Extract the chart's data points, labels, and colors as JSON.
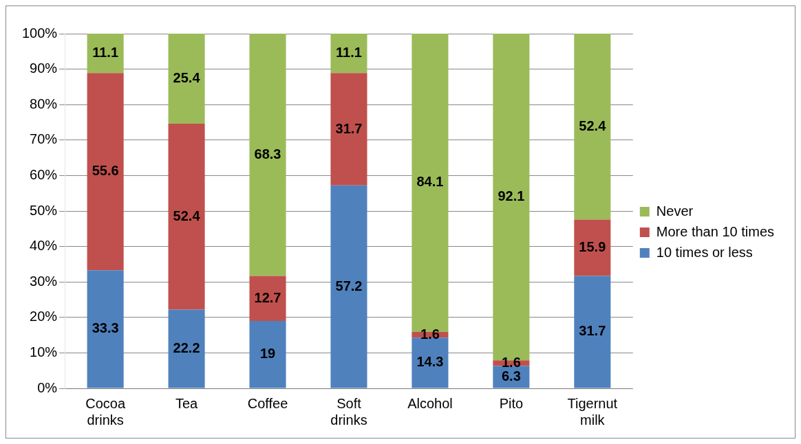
{
  "chart_data": {
    "type": "bar",
    "stacked": true,
    "categories": [
      "Cocoa drinks",
      "Tea",
      "Coffee",
      "Soft drinks",
      "Alcohol",
      "Pito",
      "Tigernut milk"
    ],
    "series": [
      {
        "name": "10 times or less",
        "color": "#4f81bd",
        "values": [
          33.3,
          22.2,
          19,
          57.2,
          14.3,
          6.3,
          31.7
        ]
      },
      {
        "name": "More than 10 times",
        "color": "#c0504d",
        "values": [
          55.6,
          52.4,
          12.7,
          31.7,
          1.6,
          1.6,
          15.9
        ]
      },
      {
        "name": "Never",
        "color": "#9bbb59",
        "values": [
          11.1,
          25.4,
          68.3,
          11.1,
          84.1,
          92.1,
          52.4
        ]
      }
    ],
    "ylim": [
      0,
      100
    ],
    "yticks": [
      {
        "value": 0,
        "label": "0%"
      },
      {
        "value": 10,
        "label": "10%"
      },
      {
        "value": 20,
        "label": "20%"
      },
      {
        "value": 30,
        "label": "30%"
      },
      {
        "value": 40,
        "label": "40%"
      },
      {
        "value": 50,
        "label": "50%"
      },
      {
        "value": 60,
        "label": "60%"
      },
      {
        "value": 70,
        "label": "70%"
      },
      {
        "value": 80,
        "label": "80%"
      },
      {
        "value": 90,
        "label": "90%"
      },
      {
        "value": 100,
        "label": "100%"
      }
    ],
    "grid": "y",
    "legend": "right",
    "data_labels": true
  }
}
